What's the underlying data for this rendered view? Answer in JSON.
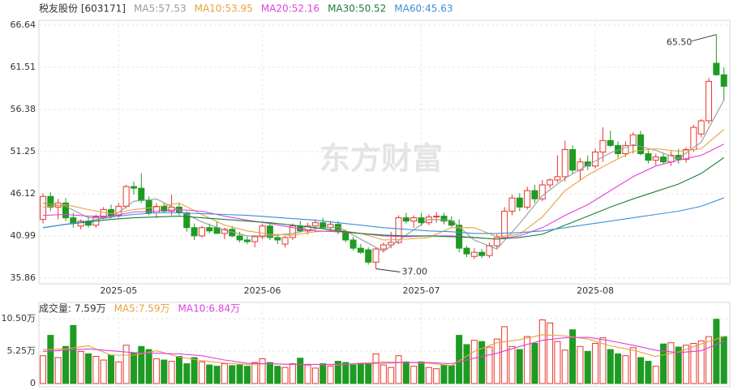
{
  "chart_data": {
    "type": "candlestick",
    "title": "税友股份 [603171]",
    "watermark": "东方财富",
    "categories": [
      null,
      null,
      null,
      null,
      null,
      null,
      null,
      null,
      null,
      null,
      "2025-05",
      null,
      null,
      null,
      null,
      null,
      null,
      null,
      null,
      null,
      null,
      null,
      null,
      null,
      null,
      null,
      null,
      null,
      null,
      "2025-06",
      null,
      null,
      null,
      null,
      null,
      null,
      null,
      null,
      null,
      null,
      null,
      null,
      null,
      null,
      null,
      null,
      null,
      null,
      null,
      null,
      "2025-07",
      null,
      null,
      null,
      null,
      null,
      null,
      null,
      null,
      null,
      null,
      null,
      null,
      null,
      null,
      null,
      null,
      null,
      null,
      null,
      null,
      null,
      null,
      "2025-08",
      null,
      null,
      null,
      null,
      null,
      null,
      null,
      null,
      null,
      null,
      null,
      null,
      null,
      null,
      null,
      null,
      null
    ],
    "open": [
      43.0,
      45.8,
      44.5,
      45.0,
      43.2,
      42.2,
      42.8,
      42.3,
      43.3,
      44.2,
      43.5,
      44.6,
      47.0,
      46.8,
      45.3,
      43.8,
      44.6,
      44.0,
      44.5,
      43.8,
      42.0,
      41.0,
      42.0,
      42.0,
      41.3,
      41.8,
      41.0,
      40.5,
      40.3,
      40.9,
      42.2,
      40.8,
      40.0,
      40.8,
      42.2,
      41.6,
      42.2,
      42.6,
      42.0,
      42.4,
      41.5,
      40.5,
      39.5,
      39.3,
      37.8,
      39.4,
      39.9,
      40.2,
      43.2,
      42.8,
      43.2,
      42.6,
      43.3,
      43.4,
      42.8,
      42.3,
      39.5,
      38.5,
      39.0,
      38.6,
      39.8,
      40.8,
      44.0,
      45.6,
      44.5,
      46.5,
      45.5,
      47.2,
      47.8,
      48.2,
      51.5,
      49.0,
      50.0,
      49.5,
      51.2,
      52.6,
      52.0,
      51.0,
      52.0,
      53.3,
      51.0,
      50.2,
      50.6,
      50.0,
      50.8,
      50.3,
      51.5,
      53.4,
      55.0,
      62.0,
      60.6
    ],
    "high": [
      46.2,
      46.3,
      45.5,
      45.6,
      43.8,
      43.0,
      43.3,
      43.6,
      44.5,
      44.8,
      45.0,
      47.2,
      47.6,
      48.6,
      45.8,
      45.0,
      45.0,
      46.0,
      45.0,
      44.0,
      42.5,
      42.2,
      42.5,
      42.8,
      42.0,
      42.2,
      41.5,
      40.9,
      41.0,
      42.5,
      42.6,
      41.2,
      41.0,
      42.5,
      42.8,
      42.6,
      43.0,
      43.2,
      42.8,
      42.8,
      41.8,
      40.9,
      40.0,
      39.6,
      39.6,
      40.2,
      41.5,
      43.5,
      43.8,
      43.5,
      43.8,
      43.6,
      43.9,
      43.8,
      43.4,
      43.0,
      39.8,
      39.5,
      39.4,
      40.2,
      41.2,
      44.5,
      46.0,
      46.2,
      47.0,
      47.2,
      47.8,
      48.0,
      50.8,
      52.6,
      52.0,
      50.5,
      50.8,
      51.6,
      54.2,
      53.8,
      52.5,
      52.5,
      53.6,
      53.8,
      51.4,
      51.0,
      51.0,
      51.3,
      51.6,
      51.8,
      54.5,
      55.2,
      60.2,
      65.5,
      61.5
    ],
    "low": [
      42.5,
      44.0,
      43.0,
      42.8,
      42.0,
      41.8,
      42.0,
      42.0,
      43.0,
      43.2,
      43.2,
      44.3,
      46.0,
      45.0,
      43.5,
      43.2,
      43.8,
      43.5,
      43.5,
      41.5,
      40.5,
      40.8,
      41.3,
      41.3,
      40.6,
      40.8,
      40.2,
      40.0,
      39.6,
      40.6,
      40.5,
      40.0,
      39.6,
      40.5,
      41.4,
      41.2,
      41.5,
      41.8,
      41.6,
      41.2,
      40.2,
      39.2,
      38.8,
      37.5,
      37.0,
      39.0,
      39.5,
      40.0,
      42.5,
      42.0,
      42.2,
      42.3,
      42.6,
      42.4,
      42.0,
      39.0,
      38.4,
      38.2,
      38.3,
      38.3,
      39.5,
      40.6,
      43.5,
      44.0,
      44.2,
      45.0,
      45.2,
      46.8,
      47.5,
      47.6,
      48.5,
      47.8,
      49.0,
      49.2,
      50.0,
      51.8,
      50.5,
      50.6,
      51.0,
      50.8,
      49.8,
      49.6,
      49.8,
      49.5,
      49.8,
      49.9,
      51.2,
      53.0,
      54.6,
      60.5,
      57.5
    ],
    "close": [
      45.8,
      44.5,
      45.0,
      43.2,
      42.5,
      42.8,
      42.3,
      43.3,
      44.2,
      43.5,
      44.6,
      47.0,
      46.8,
      45.3,
      43.8,
      44.6,
      44.0,
      44.5,
      43.8,
      42.0,
      41.0,
      42.0,
      41.6,
      41.3,
      41.8,
      41.0,
      40.5,
      40.3,
      40.9,
      42.2,
      40.8,
      40.5,
      40.8,
      42.2,
      41.6,
      42.2,
      42.6,
      42.0,
      42.4,
      41.5,
      40.5,
      39.5,
      39.0,
      37.8,
      39.4,
      39.9,
      40.2,
      43.2,
      42.8,
      43.2,
      42.6,
      43.3,
      43.4,
      42.8,
      42.3,
      39.5,
      38.8,
      39.0,
      38.6,
      39.8,
      40.8,
      44.0,
      45.6,
      44.5,
      46.5,
      45.5,
      47.2,
      47.8,
      48.2,
      51.5,
      49.0,
      50.0,
      49.5,
      51.2,
      52.6,
      52.0,
      51.0,
      52.0,
      53.3,
      51.0,
      50.2,
      50.6,
      50.0,
      50.8,
      50.3,
      51.5,
      54.2,
      55.0,
      59.8,
      60.6,
      59.2
    ],
    "up_color": "#e8352c",
    "down_color": "#1e9b22",
    "ylim": [
      35.86,
      66.64
    ],
    "yticks": [
      66.64,
      61.51,
      56.38,
      51.25,
      46.12,
      40.99,
      35.86
    ],
    "grid": true,
    "annotations": [
      {
        "text": "65.50"
      },
      {
        "text": "37.00"
      }
    ],
    "ma_index": [
      0,
      3,
      6,
      9,
      12,
      15,
      18,
      21,
      24,
      27,
      30,
      33,
      36,
      39,
      42,
      45,
      48,
      51,
      54,
      57,
      60,
      63,
      66,
      69,
      72,
      75,
      78,
      81,
      84,
      87,
      90
    ],
    "ma_series": [
      {
        "name": "MA5:57.53",
        "color": "#999999",
        "values": [
          45.0,
          44.6,
          43.2,
          43.2,
          45.2,
          45.5,
          44.1,
          42.7,
          41.7,
          41.0,
          41.0,
          41.3,
          41.9,
          42.1,
          40.6,
          39.1,
          41.1,
          43.0,
          42.9,
          40.5,
          39.4,
          42.5,
          45.9,
          48.0,
          49.6,
          51.1,
          52.1,
          51.4,
          50.4,
          52.4,
          57.53
        ]
      },
      {
        "name": "MA10:53.95",
        "color": "#e6a23c",
        "values": [
          44.5,
          44.8,
          44.2,
          43.7,
          44.2,
          44.5,
          45.0,
          43.6,
          42.3,
          41.6,
          41.2,
          41.1,
          41.5,
          41.7,
          41.3,
          40.5,
          40.6,
          40.8,
          42.0,
          42.0,
          40.9,
          41.2,
          43.3,
          46.5,
          48.4,
          49.9,
          51.3,
          51.6,
          51.3,
          51.6,
          53.95
        ]
      },
      {
        "name": "MA20:52.16",
        "color": "#e040e0",
        "values": [
          43.5,
          43.6,
          43.4,
          43.4,
          43.9,
          44.0,
          44.2,
          44.0,
          43.4,
          42.9,
          42.5,
          42.0,
          41.6,
          41.5,
          41.3,
          41.0,
          40.9,
          41.0,
          41.0,
          40.8,
          40.6,
          41.0,
          42.0,
          43.5,
          44.8,
          46.5,
          48.2,
          49.5,
          50.2,
          50.8,
          52.16
        ]
      },
      {
        "name": "MA30:50.52",
        "color": "#1b7d3a",
        "values": [
          42.0,
          42.4,
          42.7,
          43.0,
          43.2,
          43.3,
          43.4,
          43.2,
          43.0,
          42.8,
          42.6,
          42.3,
          42.0,
          41.6,
          41.3,
          41.1,
          41.0,
          41.0,
          40.9,
          40.8,
          40.6,
          40.8,
          41.2,
          42.3,
          43.4,
          44.5,
          45.5,
          46.4,
          47.3,
          48.6,
          50.52
        ]
      },
      {
        "name": "MA60:45.63",
        "color": "#3a8fd9",
        "values": [
          42.0,
          42.4,
          42.8,
          43.3,
          43.6,
          43.8,
          43.8,
          43.7,
          43.6,
          43.5,
          43.3,
          43.1,
          42.9,
          42.6,
          42.3,
          42.0,
          41.8,
          41.6,
          41.5,
          41.3,
          41.3,
          41.4,
          41.6,
          42.0,
          42.4,
          42.8,
          43.2,
          43.6,
          44.0,
          44.6,
          45.63
        ]
      }
    ],
    "volume": {
      "title": "成交量: 7.59万",
      "values": [
        4.5,
        7.8,
        4.2,
        6.0,
        9.4,
        5.2,
        4.8,
        4.4,
        3.8,
        4.6,
        3.5,
        6.2,
        5.0,
        6.0,
        5.5,
        4.0,
        3.8,
        3.6,
        4.4,
        3.2,
        4.2,
        3.5,
        3.0,
        2.8,
        3.2,
        2.9,
        3.0,
        2.8,
        3.4,
        4.0,
        3.4,
        2.8,
        2.6,
        3.2,
        4.1,
        3.0,
        2.5,
        3.2,
        2.8,
        3.6,
        3.4,
        3.0,
        3.3,
        3.1,
        4.8,
        3.0,
        2.6,
        4.5,
        3.5,
        2.8,
        3.5,
        2.6,
        2.4,
        3.0,
        2.9,
        7.8,
        6.3,
        7.0,
        6.8,
        5.9,
        7.2,
        9.2,
        6.0,
        5.5,
        7.6,
        6.5,
        10.3,
        9.8,
        6.8,
        5.4,
        8.7,
        6.0,
        5.2,
        6.5,
        7.4,
        5.5,
        4.8,
        4.5,
        5.8,
        4.2,
        3.6,
        2.8,
        6.4,
        6.6,
        5.9,
        6.2,
        6.5,
        6.9,
        7.6,
        10.4,
        7.59
      ],
      "ylim": [
        0,
        10.5
      ],
      "yticks": [
        {
          "value": 10.5,
          "label": "10.50万"
        },
        {
          "value": 5.25,
          "label": "5.25万"
        },
        0
      ],
      "series": [
        {
          "name": "MA5:7.59万",
          "color": "#e6a23c",
          "values": [
            5.5,
            5.6,
            6.1,
            4.6,
            4.6,
            5.3,
            4.3,
            3.7,
            3.3,
            3.1,
            3.2,
            3.1,
            3.1,
            3.0,
            3.3,
            3.5,
            3.4,
            3.3,
            2.9,
            5.2,
            6.6,
            7.1,
            7.9,
            7.7,
            7.2,
            6.1,
            5.4,
            4.4,
            5.1,
            6.4,
            7.59
          ]
        },
        {
          "name": "MA10:6.84万",
          "color": "#e040e0",
          "values": [
            5.2,
            5.4,
            5.6,
            5.3,
            5.0,
            4.9,
            4.8,
            4.5,
            3.8,
            3.3,
            3.2,
            3.1,
            3.1,
            3.1,
            3.2,
            3.3,
            3.4,
            3.4,
            3.2,
            4.1,
            4.9,
            6.0,
            7.0,
            7.4,
            7.5,
            6.9,
            6.2,
            5.4,
            5.0,
            5.3,
            6.84
          ]
        }
      ]
    }
  }
}
